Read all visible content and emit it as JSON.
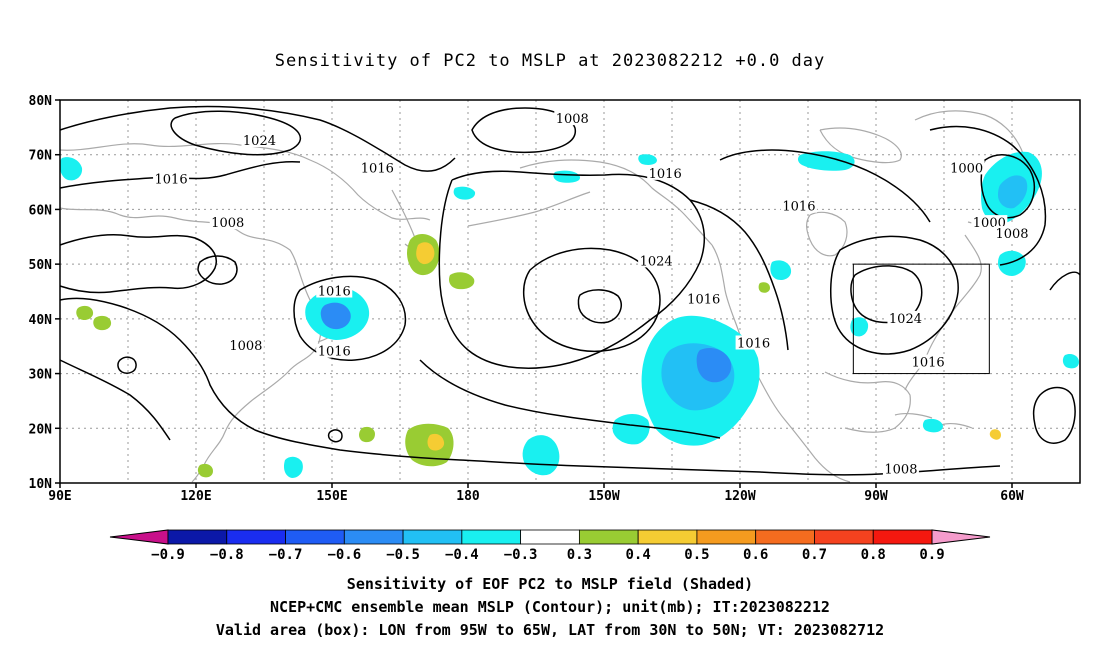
{
  "title": "Sensitivity of PC2 to MSLP at 2023082212 +0.0 day",
  "captions": [
    "Sensitivity of EOF PC2 to MSLP field (Shaded)",
    "NCEP+CMC ensemble mean MSLP (Contour); unit(mb); IT:2023082212",
    "Valid area (box): LON from 95W to 65W, LAT from 30N to 50N; VT: 2023082712"
  ],
  "map": {
    "lon_range": [
      90,
      315
    ],
    "lat_range": [
      10,
      80
    ],
    "lat_ticks": [
      {
        "value": 80,
        "label": "80N"
      },
      {
        "value": 70,
        "label": "70N"
      },
      {
        "value": 60,
        "label": "60N"
      },
      {
        "value": 50,
        "label": "50N"
      },
      {
        "value": 40,
        "label": "40N"
      },
      {
        "value": 30,
        "label": "30N"
      },
      {
        "value": 20,
        "label": "20N"
      },
      {
        "value": 10,
        "label": "10N"
      }
    ],
    "lon_ticks": [
      {
        "value": 90,
        "label": "90E"
      },
      {
        "value": 120,
        "label": "120E"
      },
      {
        "value": 150,
        "label": "150E"
      },
      {
        "value": 180,
        "label": "180"
      },
      {
        "value": 210,
        "label": "150W"
      },
      {
        "value": 240,
        "label": "120W"
      },
      {
        "value": 270,
        "label": "90W"
      },
      {
        "value": 300,
        "label": "60W"
      }
    ],
    "grid_lons": [
      105,
      120,
      135,
      150,
      165,
      180,
      195,
      210,
      225,
      240,
      255,
      270,
      285,
      300
    ],
    "grid_lats": [
      20,
      30,
      40,
      50,
      60,
      70
    ],
    "valid_box": {
      "lon_min": 265,
      "lon_max": 295,
      "lat_min": 30,
      "lat_max": 50
    },
    "contour_labels": [
      {
        "text": "1008",
        "lon": 203,
        "lat": 76.5
      },
      {
        "text": "1024",
        "lon": 134,
        "lat": 72.5
      },
      {
        "text": "1016",
        "lon": 160,
        "lat": 67.5
      },
      {
        "text": "1016",
        "lon": 114.5,
        "lat": 65.5
      },
      {
        "text": "1016",
        "lon": 223.5,
        "lat": 66.5
      },
      {
        "text": "1000",
        "lon": 290,
        "lat": 67.5
      },
      {
        "text": "1000",
        "lon": 295,
        "lat": 57.5
      },
      {
        "text": "1008",
        "lon": 300,
        "lat": 55.5
      },
      {
        "text": "1016",
        "lon": 253,
        "lat": 60.5
      },
      {
        "text": "1008",
        "lon": 127,
        "lat": 57.5
      },
      {
        "text": "1024",
        "lon": 221.5,
        "lat": 50.5
      },
      {
        "text": "1016",
        "lon": 232,
        "lat": 43.5
      },
      {
        "text": "1016",
        "lon": 150.5,
        "lat": 45
      },
      {
        "text": "1016",
        "lon": 150.5,
        "lat": 34
      },
      {
        "text": "1024",
        "lon": 276.5,
        "lat": 40
      },
      {
        "text": "1016",
        "lon": 281.5,
        "lat": 32
      },
      {
        "text": "1016",
        "lon": 243,
        "lat": 35.5
      },
      {
        "text": "1008",
        "lon": 131,
        "lat": 35
      },
      {
        "text": "1008",
        "lon": 275.5,
        "lat": 12.5
      }
    ]
  },
  "colorbar": {
    "labels": [
      "-0.9",
      "-0.8",
      "-0.7",
      "-0.6",
      "-0.5",
      "-0.4",
      "-0.3",
      "0.3",
      "0.4",
      "0.5",
      "0.6",
      "0.7",
      "0.8",
      "0.9"
    ],
    "colors": [
      "#0b18a8",
      "#1a2df0",
      "#1f5cf5",
      "#2b8cf5",
      "#22c0f5",
      "#19f0f0",
      "#ffffff",
      "#99cc33",
      "#f5cc33",
      "#f59b1f",
      "#f56c1f",
      "#f5421f",
      "#f5180f"
    ],
    "low_end_color": "#c8108a",
    "high_end_color": "#f59ccc"
  }
}
